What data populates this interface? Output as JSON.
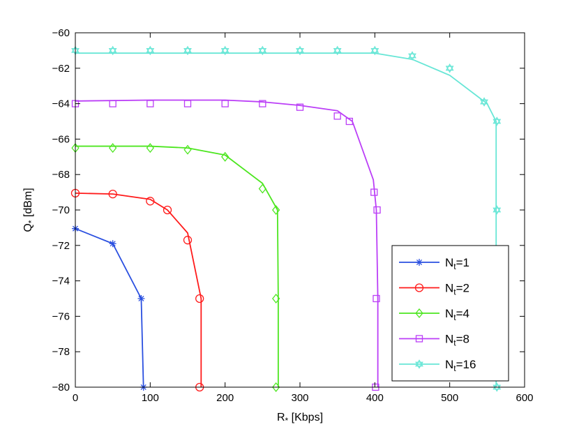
{
  "chart_data": {
    "type": "line",
    "xlabel": {
      "main": "R",
      "sub": "*",
      "rest": " [Kbps]"
    },
    "ylabel": {
      "main": "Q",
      "sub": "*",
      "rest": " [dBm]"
    },
    "xlim": [
      0,
      600
    ],
    "ylim": [
      -80,
      -60
    ],
    "x_ticks": [
      0,
      100,
      200,
      300,
      400,
      500,
      600
    ],
    "y_ticks": [
      -60,
      -62,
      -64,
      -66,
      -68,
      -70,
      -72,
      -74,
      -76,
      -78,
      -80
    ],
    "x_tick_labels": [
      "0",
      "100",
      "200",
      "300",
      "400",
      "500",
      "600"
    ],
    "y_tick_labels": [
      "−60",
      "−62",
      "−64",
      "−66",
      "−68",
      "−70",
      "−72",
      "−74",
      "−76",
      "−78",
      "−80"
    ],
    "grid": false,
    "legend_position": "bottom-right",
    "series": [
      {
        "name": "N_t=1",
        "label": {
          "main": "N",
          "sub": "t",
          "rest": "=1"
        },
        "color": "#2a4fe0",
        "marker": "asterisk",
        "line": [
          [
            0,
            -71.05
          ],
          [
            50,
            -71.9
          ],
          [
            88,
            -75
          ],
          [
            91,
            -80
          ]
        ],
        "markers": [
          [
            0,
            -71.05
          ],
          [
            50,
            -71.9
          ],
          [
            88,
            -75
          ],
          [
            91,
            -80
          ]
        ]
      },
      {
        "name": "N_t=2",
        "label": {
          "main": "N",
          "sub": "t",
          "rest": "=2"
        },
        "color": "#ff1a1a",
        "marker": "circle",
        "line": [
          [
            0,
            -69.05
          ],
          [
            50,
            -69.1
          ],
          [
            100,
            -69.4
          ],
          [
            123,
            -70
          ],
          [
            150,
            -71.3
          ],
          [
            168,
            -75
          ],
          [
            168,
            -80
          ]
        ],
        "markers": [
          [
            0,
            -69.05
          ],
          [
            50,
            -69.1
          ],
          [
            100,
            -69.5
          ],
          [
            123,
            -70
          ],
          [
            150,
            -71.7
          ],
          [
            166,
            -75
          ],
          [
            166,
            -80
          ]
        ]
      },
      {
        "name": "N_t=4",
        "label": {
          "main": "N",
          "sub": "t",
          "rest": "=4"
        },
        "color": "#4ce61f",
        "marker": "diamond",
        "line": [
          [
            0,
            -66.4
          ],
          [
            100,
            -66.4
          ],
          [
            150,
            -66.5
          ],
          [
            200,
            -66.9
          ],
          [
            250,
            -68.5
          ],
          [
            270,
            -70
          ],
          [
            271,
            -75
          ],
          [
            271,
            -80
          ]
        ],
        "markers": [
          [
            0,
            -66.5
          ],
          [
            50,
            -66.5
          ],
          [
            100,
            -66.5
          ],
          [
            150,
            -66.6
          ],
          [
            200,
            -67
          ],
          [
            250,
            -68.8
          ],
          [
            268,
            -70
          ],
          [
            268,
            -75
          ],
          [
            268,
            -80
          ]
        ]
      },
      {
        "name": "N_t=8",
        "label": {
          "main": "N",
          "sub": "t",
          "rest": "=8"
        },
        "color": "#bb3ef7",
        "marker": "square",
        "line": [
          [
            0,
            -63.85
          ],
          [
            100,
            -63.8
          ],
          [
            200,
            -63.8
          ],
          [
            250,
            -63.9
          ],
          [
            300,
            -64.1
          ],
          [
            350,
            -64.4
          ],
          [
            370,
            -65
          ],
          [
            398,
            -68.3
          ],
          [
            402,
            -70
          ],
          [
            404,
            -75
          ],
          [
            404,
            -80
          ]
        ],
        "markers": [
          [
            0,
            -64
          ],
          [
            50,
            -64
          ],
          [
            100,
            -64
          ],
          [
            150,
            -64
          ],
          [
            200,
            -64
          ],
          [
            250,
            -64
          ],
          [
            300,
            -64.2
          ],
          [
            350,
            -64.7
          ],
          [
            366,
            -65
          ],
          [
            399,
            -69
          ],
          [
            403,
            -70
          ],
          [
            402,
            -75
          ],
          [
            401,
            -80
          ]
        ]
      },
      {
        "name": "N_t=16",
        "label": {
          "main": "N",
          "sub": "t",
          "rest": "=16"
        },
        "color": "#67e6d6",
        "marker": "hexagram",
        "line": [
          [
            0,
            -61.15
          ],
          [
            100,
            -61.15
          ],
          [
            200,
            -61.15
          ],
          [
            300,
            -61.15
          ],
          [
            400,
            -61.15
          ],
          [
            450,
            -61.5
          ],
          [
            500,
            -62.4
          ],
          [
            550,
            -64
          ],
          [
            562,
            -65
          ],
          [
            562,
            -70
          ],
          [
            562,
            -75
          ],
          [
            562,
            -80
          ]
        ],
        "markers": [
          [
            0,
            -61
          ],
          [
            50,
            -61
          ],
          [
            100,
            -61
          ],
          [
            150,
            -61
          ],
          [
            200,
            -61
          ],
          [
            250,
            -61
          ],
          [
            300,
            -61
          ],
          [
            350,
            -61
          ],
          [
            400,
            -61
          ],
          [
            450,
            -61.3
          ],
          [
            500,
            -62
          ],
          [
            546,
            -63.9
          ],
          [
            563,
            -65
          ],
          [
            563,
            -70
          ],
          [
            563,
            -75
          ],
          [
            563,
            -80
          ]
        ]
      }
    ]
  }
}
